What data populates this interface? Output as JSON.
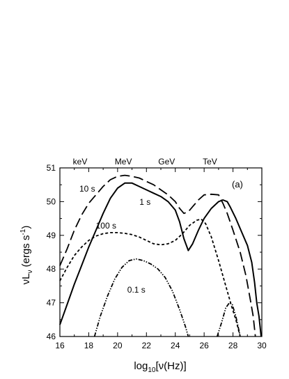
{
  "chart_data": {
    "type": "line",
    "title": "",
    "panel_label": "(a)",
    "xlabel": "log₁₀[ν(Hz)]",
    "xlabel_parts": {
      "pre": "log",
      "sub": "10",
      "post": "[ν(Hz)]"
    },
    "ylabel": "νLν (ergs s⁻¹)",
    "ylabel_parts": {
      "a": "νL",
      "sub": "ν",
      "b": " (ergs s",
      "sup": "-1",
      "c": ")"
    },
    "xlim": [
      16,
      30
    ],
    "ylim": [
      46,
      51
    ],
    "x_ticks": [
      16,
      18,
      20,
      22,
      24,
      26,
      28,
      30
    ],
    "y_ticks": [
      46,
      47,
      48,
      49,
      50,
      51
    ],
    "top_axis": [
      {
        "label": "keV",
        "x": 17.4
      },
      {
        "label": "MeV",
        "x": 20.4
      },
      {
        "label": "GeV",
        "x": 23.4
      },
      {
        "label": "TeV",
        "x": 26.4
      }
    ],
    "grid": false,
    "series": [
      {
        "name": "0.1 s",
        "style": "dash-dot-dot",
        "label_at": [
          21.3,
          47.3
        ],
        "segments": [
          [
            [
              18.4,
              46.0
            ],
            [
              18.8,
              46.6
            ],
            [
              19.3,
              47.2
            ],
            [
              19.8,
              47.7
            ],
            [
              20.3,
              48.05
            ],
            [
              20.8,
              48.25
            ],
            [
              21.3,
              48.3
            ],
            [
              21.8,
              48.25
            ],
            [
              22.3,
              48.15
            ],
            [
              22.8,
              48.0
            ],
            [
              23.3,
              47.75
            ],
            [
              23.8,
              47.35
            ],
            [
              24.3,
              46.8
            ],
            [
              24.7,
              46.3
            ],
            [
              24.9,
              46.0
            ]
          ],
          [
            [
              26.9,
              46.0
            ],
            [
              27.2,
              46.4
            ],
            [
              27.5,
              46.85
            ],
            [
              27.75,
              47.0
            ],
            [
              27.95,
              46.95
            ],
            [
              28.2,
              46.6
            ],
            [
              28.4,
              46.2
            ],
            [
              28.5,
              46.0
            ]
          ]
        ]
      },
      {
        "name": "1 s",
        "style": "solid",
        "label_at": [
          21.9,
          49.9
        ],
        "segments": [
          [
            [
              16.0,
              46.35
            ],
            [
              16.5,
              46.95
            ],
            [
              17.0,
              47.55
            ],
            [
              17.5,
              48.1
            ],
            [
              18.0,
              48.65
            ],
            [
              18.5,
              49.15
            ],
            [
              19.0,
              49.65
            ],
            [
              19.5,
              50.1
            ],
            [
              20.0,
              50.4
            ],
            [
              20.5,
              50.55
            ],
            [
              21.0,
              50.55
            ],
            [
              21.5,
              50.45
            ],
            [
              22.0,
              50.35
            ],
            [
              22.5,
              50.25
            ],
            [
              23.0,
              50.15
            ],
            [
              23.5,
              50.0
            ],
            [
              24.0,
              49.75
            ],
            [
              24.3,
              49.4
            ],
            [
              24.6,
              48.9
            ],
            [
              24.9,
              48.55
            ],
            [
              25.2,
              48.75
            ],
            [
              25.6,
              49.15
            ],
            [
              26.0,
              49.5
            ],
            [
              26.5,
              49.8
            ],
            [
              27.0,
              50.0
            ],
            [
              27.3,
              50.05
            ],
            [
              27.6,
              50.0
            ],
            [
              27.8,
              49.85
            ],
            [
              28.2,
              49.5
            ],
            [
              28.6,
              49.1
            ],
            [
              29.0,
              48.7
            ],
            [
              29.3,
              48.2
            ],
            [
              29.5,
              47.6
            ],
            [
              29.65,
              47.0
            ],
            [
              29.8,
              46.6
            ],
            [
              29.95,
              46.0
            ]
          ]
        ]
      },
      {
        "name": "10 s",
        "style": "long-dash",
        "label_at": [
          17.9,
          50.3
        ],
        "segments": [
          [
            [
              16.0,
              48.1
            ],
            [
              16.5,
              48.6
            ],
            [
              17.0,
              49.15
            ],
            [
              17.5,
              49.6
            ],
            [
              18.0,
              49.95
            ],
            [
              18.5,
              50.2
            ],
            [
              19.0,
              50.45
            ],
            [
              19.5,
              50.65
            ],
            [
              20.0,
              50.75
            ],
            [
              20.5,
              50.78
            ],
            [
              21.0,
              50.75
            ],
            [
              21.5,
              50.7
            ],
            [
              22.0,
              50.6
            ],
            [
              22.5,
              50.5
            ],
            [
              23.0,
              50.35
            ],
            [
              23.5,
              50.2
            ],
            [
              24.0,
              50.0
            ],
            [
              24.3,
              49.8
            ],
            [
              24.6,
              49.65
            ],
            [
              24.9,
              49.7
            ],
            [
              25.2,
              49.85
            ],
            [
              25.6,
              50.05
            ],
            [
              26.0,
              50.2
            ],
            [
              26.5,
              50.22
            ],
            [
              27.0,
              50.2
            ],
            [
              27.3,
              49.95
            ],
            [
              27.6,
              49.65
            ],
            [
              28.0,
              49.15
            ],
            [
              28.5,
              48.5
            ],
            [
              28.9,
              47.8
            ],
            [
              29.2,
              47.1
            ],
            [
              29.4,
              46.6
            ],
            [
              29.55,
              46.0
            ]
          ]
        ]
      },
      {
        "name": "100 s",
        "style": "short-dash",
        "label_at": [
          19.2,
          49.2
        ],
        "segments": [
          [
            [
              16.0,
              47.65
            ],
            [
              16.5,
              48.05
            ],
            [
              17.0,
              48.4
            ],
            [
              17.5,
              48.65
            ],
            [
              18.0,
              48.85
            ],
            [
              18.5,
              48.98
            ],
            [
              19.0,
              49.05
            ],
            [
              19.5,
              49.08
            ],
            [
              20.0,
              49.08
            ],
            [
              20.5,
              49.06
            ],
            [
              21.0,
              49.02
            ],
            [
              21.5,
              48.95
            ],
            [
              22.0,
              48.85
            ],
            [
              22.5,
              48.75
            ],
            [
              23.0,
              48.72
            ],
            [
              23.5,
              48.75
            ],
            [
              24.0,
              48.85
            ],
            [
              24.5,
              49.05
            ],
            [
              25.0,
              49.3
            ],
            [
              25.5,
              49.45
            ],
            [
              25.8,
              49.48
            ],
            [
              26.1,
              49.35
            ],
            [
              26.5,
              48.95
            ],
            [
              27.0,
              48.25
            ],
            [
              27.5,
              47.5
            ],
            [
              27.9,
              46.9
            ],
            [
              28.2,
              46.5
            ],
            [
              28.5,
              46.0
            ]
          ]
        ]
      }
    ]
  }
}
